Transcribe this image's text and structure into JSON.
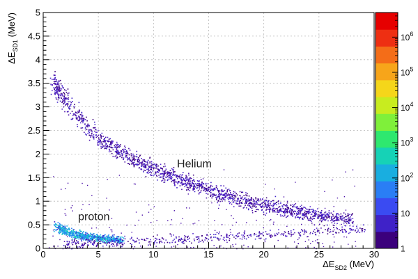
{
  "chart_data": {
    "type": "heatmap",
    "title": "",
    "xlabel": {
      "prefix": "ΔE",
      "sub": "SD2",
      "suffix": " (MeV)"
    },
    "ylabel": {
      "prefix": "ΔE",
      "sub": "SD1",
      "suffix": " (MeV)"
    },
    "xlim": [
      0,
      30
    ],
    "ylim": [
      0,
      5
    ],
    "x_ticks": [
      0,
      5,
      10,
      15,
      20,
      25,
      30
    ],
    "x_tick_labels": [
      "0",
      "5",
      "10",
      "15",
      "20",
      "25",
      "30"
    ],
    "y_ticks": [
      0,
      0.5,
      1,
      1.5,
      2,
      2.5,
      3,
      3.5,
      4,
      4.5,
      5
    ],
    "y_tick_labels": [
      "0",
      "0.5",
      "1",
      "1.5",
      "2",
      "2.5",
      "3",
      "3.5",
      "4",
      "4.5",
      "5"
    ],
    "grid": true,
    "colorbar": {
      "scale": "log",
      "range": [
        1,
        5000000
      ],
      "ticks": [
        {
          "value": 1,
          "label": "1"
        },
        {
          "value": 10,
          "label": "10"
        },
        {
          "value": 100,
          "label": "10",
          "exp": "2"
        },
        {
          "value": 1000,
          "label": "10",
          "exp": "3"
        },
        {
          "value": 10000,
          "label": "10",
          "exp": "4"
        },
        {
          "value": 100000,
          "label": "10",
          "exp": "5"
        },
        {
          "value": 1000000,
          "label": "10",
          "exp": "6"
        }
      ],
      "colors": [
        "#3b007c",
        "#3f22c8",
        "#3a4bf2",
        "#2a7ef5",
        "#19aee0",
        "#16d2b6",
        "#2ee86f",
        "#7ff03a",
        "#c8ec1f",
        "#f5d61a",
        "#f7a51a",
        "#f46d18",
        "#ee2f12",
        "#e60000"
      ]
    },
    "loci": [
      {
        "name": "Helium",
        "points": [
          [
            0.8,
            3.6
          ],
          [
            1.5,
            3.3
          ],
          [
            2,
            3.15
          ],
          [
            3,
            2.85
          ],
          [
            4,
            2.6
          ],
          [
            5,
            2.35
          ],
          [
            6,
            2.2
          ],
          [
            7,
            2.05
          ],
          [
            8,
            1.9
          ],
          [
            9,
            1.8
          ],
          [
            10,
            1.7
          ],
          [
            11,
            1.6
          ],
          [
            12,
            1.5
          ],
          [
            13,
            1.42
          ],
          [
            14,
            1.34
          ],
          [
            15,
            1.25
          ],
          [
            16,
            1.17
          ],
          [
            17,
            1.1
          ],
          [
            18,
            1.03
          ],
          [
            19,
            0.97
          ],
          [
            20,
            0.92
          ],
          [
            21,
            0.87
          ],
          [
            22,
            0.82
          ],
          [
            23,
            0.78
          ],
          [
            24,
            0.74
          ],
          [
            25,
            0.7
          ],
          [
            26,
            0.67
          ],
          [
            27,
            0.64
          ],
          [
            28,
            0.6
          ]
        ],
        "width": 0.07,
        "density": "medium"
      },
      {
        "name": "proton",
        "points": [
          [
            1.2,
            0.5
          ],
          [
            2,
            0.37
          ],
          [
            3,
            0.3
          ],
          [
            4,
            0.26
          ],
          [
            5,
            0.23
          ],
          [
            6,
            0.21
          ],
          [
            7,
            0.19
          ]
        ],
        "width": 0.035,
        "density": "high"
      },
      {
        "name": "",
        "points": [
          [
            2,
            0.12
          ],
          [
            5,
            0.13
          ],
          [
            10,
            0.17
          ],
          [
            15,
            0.23
          ],
          [
            20,
            0.3
          ],
          [
            25,
            0.37
          ],
          [
            29,
            0.42
          ]
        ],
        "width": 0.04,
        "density": "low"
      }
    ],
    "annotations": [
      {
        "text": "Helium",
        "x": 13.7,
        "y": 1.72
      },
      {
        "text": "proton",
        "x": 4.6,
        "y": 0.6
      }
    ]
  }
}
